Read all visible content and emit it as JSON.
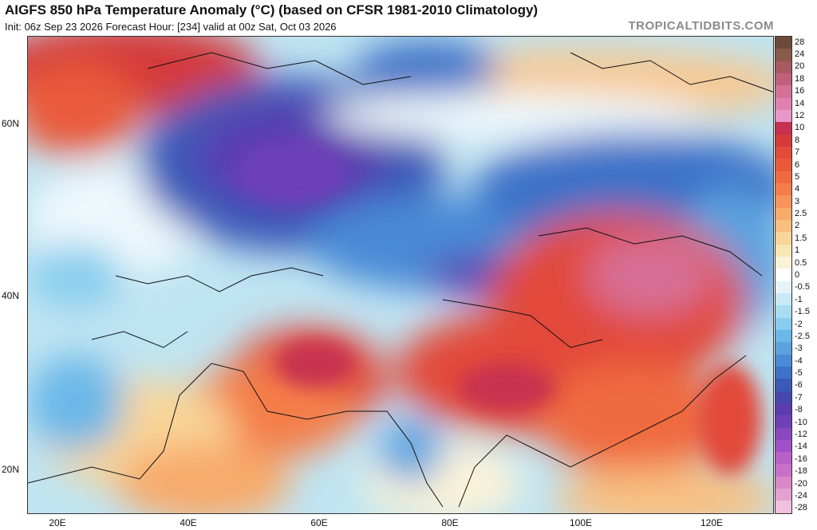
{
  "header": {
    "title": "AIGFS 850 hPa Temperature Anomaly (°C) (based on CFSR 1981-2010 Climatology)",
    "subtitle": "Init: 06z Sep 23 2026   Forecast Hour: [234]   valid at 00z Sat, Oct 03 2026",
    "brand": "TROPICALTIDBITS.COM"
  },
  "map": {
    "lat_labels": [
      "60N",
      "40N",
      "20N"
    ],
    "lon_labels": [
      "20E",
      "40E",
      "60E",
      "80E",
      "100E",
      "120E"
    ],
    "lat_values": [
      60,
      40,
      20
    ],
    "lon_values": [
      20,
      40,
      60,
      80,
      100,
      120
    ]
  },
  "colorbar": {
    "labels": [
      "28",
      "24",
      "20",
      "18",
      "16",
      "14",
      "12",
      "10",
      "8",
      "7",
      "6",
      "5",
      "4",
      "3",
      "2.5",
      "2",
      "1.5",
      "1",
      "0.5",
      "0",
      "-0.5",
      "-1",
      "-1.5",
      "-2",
      "-2.5",
      "-3",
      "-4",
      "-5",
      "-6",
      "-7",
      "-8",
      "-10",
      "-12",
      "-14",
      "-16",
      "-18",
      "-20",
      "-24",
      "-28"
    ],
    "colors": [
      "#6b4a3a",
      "#8a5a4a",
      "#a85a60",
      "#c0607a",
      "#d57095",
      "#e080b0",
      "#e898c8",
      "#c83050",
      "#d63a3a",
      "#e24a3a",
      "#ea5a3a",
      "#f06a40",
      "#f47e4a",
      "#f6945a",
      "#f8aa6a",
      "#f8bf80",
      "#f8d598",
      "#f8e6b4",
      "#fbf3d8",
      "#ffffff",
      "#e6f4fa",
      "#c8e9f6",
      "#a8dcf2",
      "#88cdee",
      "#6ab8e8",
      "#5aa2e0",
      "#4a8ad6",
      "#3e72c8",
      "#3a5ab8",
      "#4648b0",
      "#5a3cb0",
      "#7040b8",
      "#8a48c0",
      "#a050c8",
      "#b860c8",
      "#c870c8",
      "#d888c8",
      "#e4a0d0",
      "#f0c0dc"
    ]
  }
}
